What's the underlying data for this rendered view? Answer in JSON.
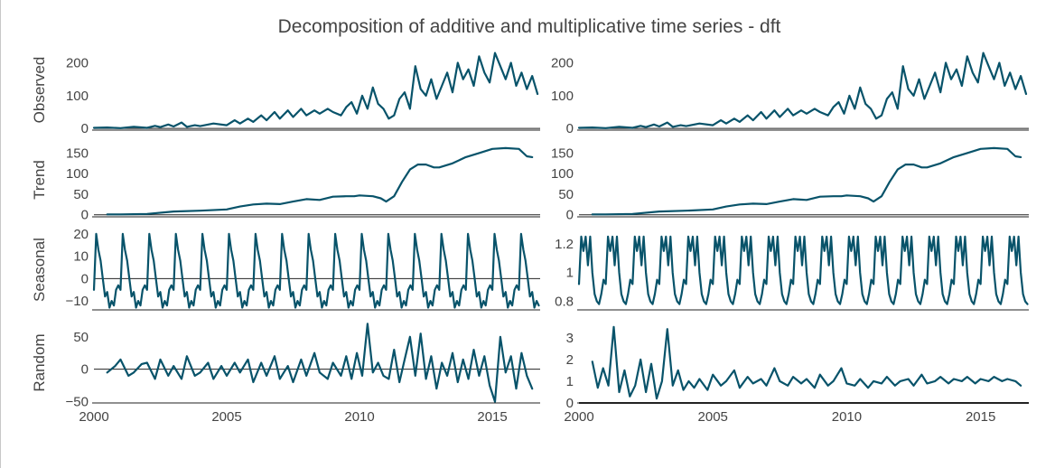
{
  "chart_data": {
    "type": "line",
    "title": "Decomposition of additive and multiplicative time series - dft",
    "colors": {
      "line": "#08536a",
      "axis": "#222222",
      "text": "#444444"
    },
    "x_axis": {
      "range": [
        2000,
        2016.8
      ],
      "ticks": [
        2000,
        2005,
        2010,
        2015
      ],
      "tick_labels": [
        "2000",
        "2005",
        "2010",
        "2015"
      ]
    },
    "grid": false,
    "columns": [
      {
        "name": "additive",
        "panels": [
          {
            "ylabel": "Observed",
            "ylim": [
              -5,
              240
            ],
            "ticks": [
              0,
              100,
              200
            ],
            "tick_labels": [
              "0",
              "100",
              "200"
            ],
            "x": [
              2000.0,
              2000.5,
              2001.0,
              2001.5,
              2002.0,
              2002.3,
              2002.5,
              2002.8,
              2003.0,
              2003.3,
              2003.5,
              2003.8,
              2004.0,
              2004.5,
              2005.0,
              2005.3,
              2005.5,
              2005.8,
              2006.0,
              2006.3,
              2006.5,
              2006.8,
              2007.0,
              2007.3,
              2007.5,
              2007.8,
              2008.0,
              2008.3,
              2008.5,
              2008.8,
              2009.0,
              2009.3,
              2009.5,
              2009.7,
              2009.9,
              2010.1,
              2010.3,
              2010.5,
              2010.7,
              2010.9,
              2011.1,
              2011.3,
              2011.5,
              2011.7,
              2011.9,
              2012.1,
              2012.3,
              2012.5,
              2012.7,
              2012.9,
              2013.1,
              2013.3,
              2013.5,
              2013.7,
              2013.9,
              2014.1,
              2014.3,
              2014.5,
              2014.7,
              2014.9,
              2015.1,
              2015.3,
              2015.5,
              2015.7,
              2015.9,
              2016.1,
              2016.3,
              2016.5,
              2016.7
            ],
            "y": [
              2,
              3,
              1,
              5,
              2,
              8,
              4,
              12,
              6,
              18,
              5,
              10,
              7,
              15,
              10,
              25,
              15,
              30,
              20,
              40,
              25,
              50,
              30,
              55,
              35,
              60,
              40,
              55,
              45,
              60,
              50,
              40,
              65,
              80,
              45,
              100,
              60,
              125,
              75,
              60,
              30,
              40,
              90,
              110,
              60,
              190,
              120,
              100,
              150,
              90,
              130,
              170,
              110,
              200,
              150,
              180,
              130,
              220,
              170,
              140,
              230,
              190,
              150,
              200,
              130,
              170,
              120,
              160,
              105
            ]
          },
          {
            "ylabel": "Trend",
            "ylim": [
              -5,
              175
            ],
            "ticks": [
              0,
              50,
              100,
              150
            ],
            "tick_labels": [
              "0",
              "50",
              "100",
              "150"
            ],
            "x": [
              2000.5,
              2001.0,
              2002.0,
              2003.0,
              2004.0,
              2005.0,
              2005.5,
              2006.0,
              2006.5,
              2007.0,
              2007.5,
              2008.0,
              2008.5,
              2009.0,
              2009.5,
              2009.8,
              2010.0,
              2010.5,
              2010.8,
              2011.0,
              2011.3,
              2011.6,
              2011.9,
              2012.2,
              2012.5,
              2012.8,
              2013.0,
              2013.5,
              2014.0,
              2014.5,
              2015.0,
              2015.5,
              2016.0,
              2016.3,
              2016.5
            ],
            "y": [
              1,
              1,
              2,
              8,
              10,
              13,
              20,
              25,
              27,
              26,
              32,
              38,
              36,
              44,
              45,
              45,
              47,
              45,
              40,
              32,
              45,
              80,
              110,
              122,
              122,
              115,
              115,
              125,
              140,
              150,
              160,
              162,
              160,
              142,
              140
            ]
          },
          {
            "ylabel": "Seasonal",
            "ylim": [
              -14,
              22
            ],
            "ticks": [
              -10,
              0,
              10,
              20
            ],
            "tick_labels": [
              "−10",
              "0",
              "10",
              "20"
            ],
            "period": 1,
            "pattern": [
              -5,
              20,
              13,
              8,
              0,
              -8,
              -6,
              -13,
              -10,
              -12,
              -5,
              -3
            ]
          },
          {
            "ylabel": "Random",
            "ylim": [
              -52,
              72
            ],
            "ticks": [
              -50,
              0,
              50
            ],
            "tick_labels": [
              "−50",
              "0",
              "50"
            ],
            "x": [
              2000.5,
              2000.8,
              2001.0,
              2001.3,
              2001.5,
              2001.8,
              2002.0,
              2002.3,
              2002.5,
              2002.8,
              2003.0,
              2003.3,
              2003.5,
              2003.8,
              2004.0,
              2004.3,
              2004.5,
              2004.8,
              2005.0,
              2005.3,
              2005.5,
              2005.8,
              2006.0,
              2006.3,
              2006.5,
              2006.8,
              2007.0,
              2007.3,
              2007.5,
              2007.8,
              2008.0,
              2008.3,
              2008.5,
              2008.8,
              2009.0,
              2009.3,
              2009.5,
              2009.7,
              2009.9,
              2010.1,
              2010.3,
              2010.5,
              2010.7,
              2010.9,
              2011.1,
              2011.3,
              2011.5,
              2011.7,
              2011.9,
              2012.1,
              2012.3,
              2012.5,
              2012.7,
              2012.9,
              2013.1,
              2013.3,
              2013.5,
              2013.7,
              2013.9,
              2014.1,
              2014.3,
              2014.5,
              2014.7,
              2014.9,
              2015.1,
              2015.3,
              2015.5,
              2015.7,
              2015.9,
              2016.1,
              2016.3,
              2016.5
            ],
            "y": [
              -5,
              5,
              15,
              -10,
              -5,
              8,
              10,
              -15,
              15,
              -10,
              5,
              -15,
              20,
              -10,
              -5,
              10,
              -15,
              5,
              -10,
              10,
              -5,
              15,
              -20,
              10,
              -10,
              20,
              -15,
              5,
              -20,
              15,
              -10,
              25,
              -5,
              -15,
              10,
              -10,
              20,
              -15,
              25,
              -10,
              70,
              -5,
              10,
              -10,
              -15,
              30,
              -20,
              15,
              50,
              -10,
              55,
              -15,
              20,
              -30,
              10,
              -10,
              25,
              -20,
              15,
              -15,
              30,
              -10,
              20,
              -25,
              -50,
              50,
              -5,
              20,
              -30,
              25,
              -10,
              -30
            ]
          }
        ]
      },
      {
        "name": "multiplicative",
        "panels": [
          {
            "ylabel": "",
            "ylim": [
              -5,
              240
            ],
            "ticks": [
              0,
              100,
              200
            ],
            "tick_labels": [
              "0",
              "100",
              "200"
            ],
            "same_as": "additive.observed"
          },
          {
            "ylabel": "",
            "ylim": [
              -5,
              175
            ],
            "ticks": [
              0,
              50,
              100,
              150
            ],
            "tick_labels": [
              "0",
              "50",
              "100",
              "150"
            ],
            "same_as": "additive.trend"
          },
          {
            "ylabel": "",
            "ylim": [
              0.74,
              1.3
            ],
            "ticks": [
              0.8,
              1,
              1.2
            ],
            "tick_labels": [
              "0.8",
              "1",
              "1.2"
            ],
            "period": 1,
            "pattern": [
              0.92,
              1.25,
              1.15,
              1.25,
              1.05,
              1.25,
              1.0,
              0.85,
              0.8,
              0.78,
              0.85,
              0.95
            ]
          },
          {
            "ylabel": "",
            "ylim": [
              0,
              3.7
            ],
            "ticks": [
              0,
              1,
              2,
              3
            ],
            "tick_labels": [
              "0",
              "1",
              "2",
              "3"
            ],
            "x": [
              2000.5,
              2000.7,
              2000.9,
              2001.1,
              2001.3,
              2001.5,
              2001.7,
              2001.9,
              2002.1,
              2002.3,
              2002.5,
              2002.7,
              2002.9,
              2003.1,
              2003.3,
              2003.5,
              2003.7,
              2003.9,
              2004.1,
              2004.3,
              2004.5,
              2004.8,
              2005.0,
              2005.3,
              2005.5,
              2005.8,
              2006.0,
              2006.3,
              2006.5,
              2006.8,
              2007.0,
              2007.3,
              2007.5,
              2007.8,
              2008.0,
              2008.3,
              2008.5,
              2008.8,
              2009.0,
              2009.3,
              2009.5,
              2009.8,
              2010.0,
              2010.3,
              2010.5,
              2010.8,
              2011.0,
              2011.3,
              2011.5,
              2011.8,
              2012.0,
              2012.3,
              2012.5,
              2012.8,
              2013.0,
              2013.3,
              2013.5,
              2013.8,
              2014.0,
              2014.3,
              2014.5,
              2014.8,
              2015.0,
              2015.3,
              2015.5,
              2015.8,
              2016.0,
              2016.3,
              2016.5
            ],
            "y": [
              1.9,
              0.7,
              1.6,
              0.8,
              3.5,
              0.5,
              1.5,
              0.3,
              0.8,
              2.0,
              0.5,
              1.8,
              0.2,
              1.0,
              3.4,
              0.8,
              1.5,
              0.6,
              1.0,
              0.7,
              1.1,
              0.6,
              1.3,
              0.8,
              1.0,
              1.5,
              0.7,
              1.2,
              0.9,
              1.1,
              0.8,
              1.6,
              1.0,
              0.8,
              1.2,
              0.9,
              1.1,
              0.7,
              1.3,
              0.8,
              1.0,
              1.6,
              0.9,
              0.8,
              1.1,
              0.7,
              1.0,
              0.9,
              1.2,
              0.8,
              1.0,
              1.1,
              0.8,
              1.3,
              0.9,
              1.0,
              1.2,
              0.9,
              1.1,
              1.0,
              1.2,
              0.9,
              1.1,
              1.0,
              1.2,
              1.0,
              1.1,
              1.0,
              0.8
            ]
          }
        ]
      }
    ]
  }
}
